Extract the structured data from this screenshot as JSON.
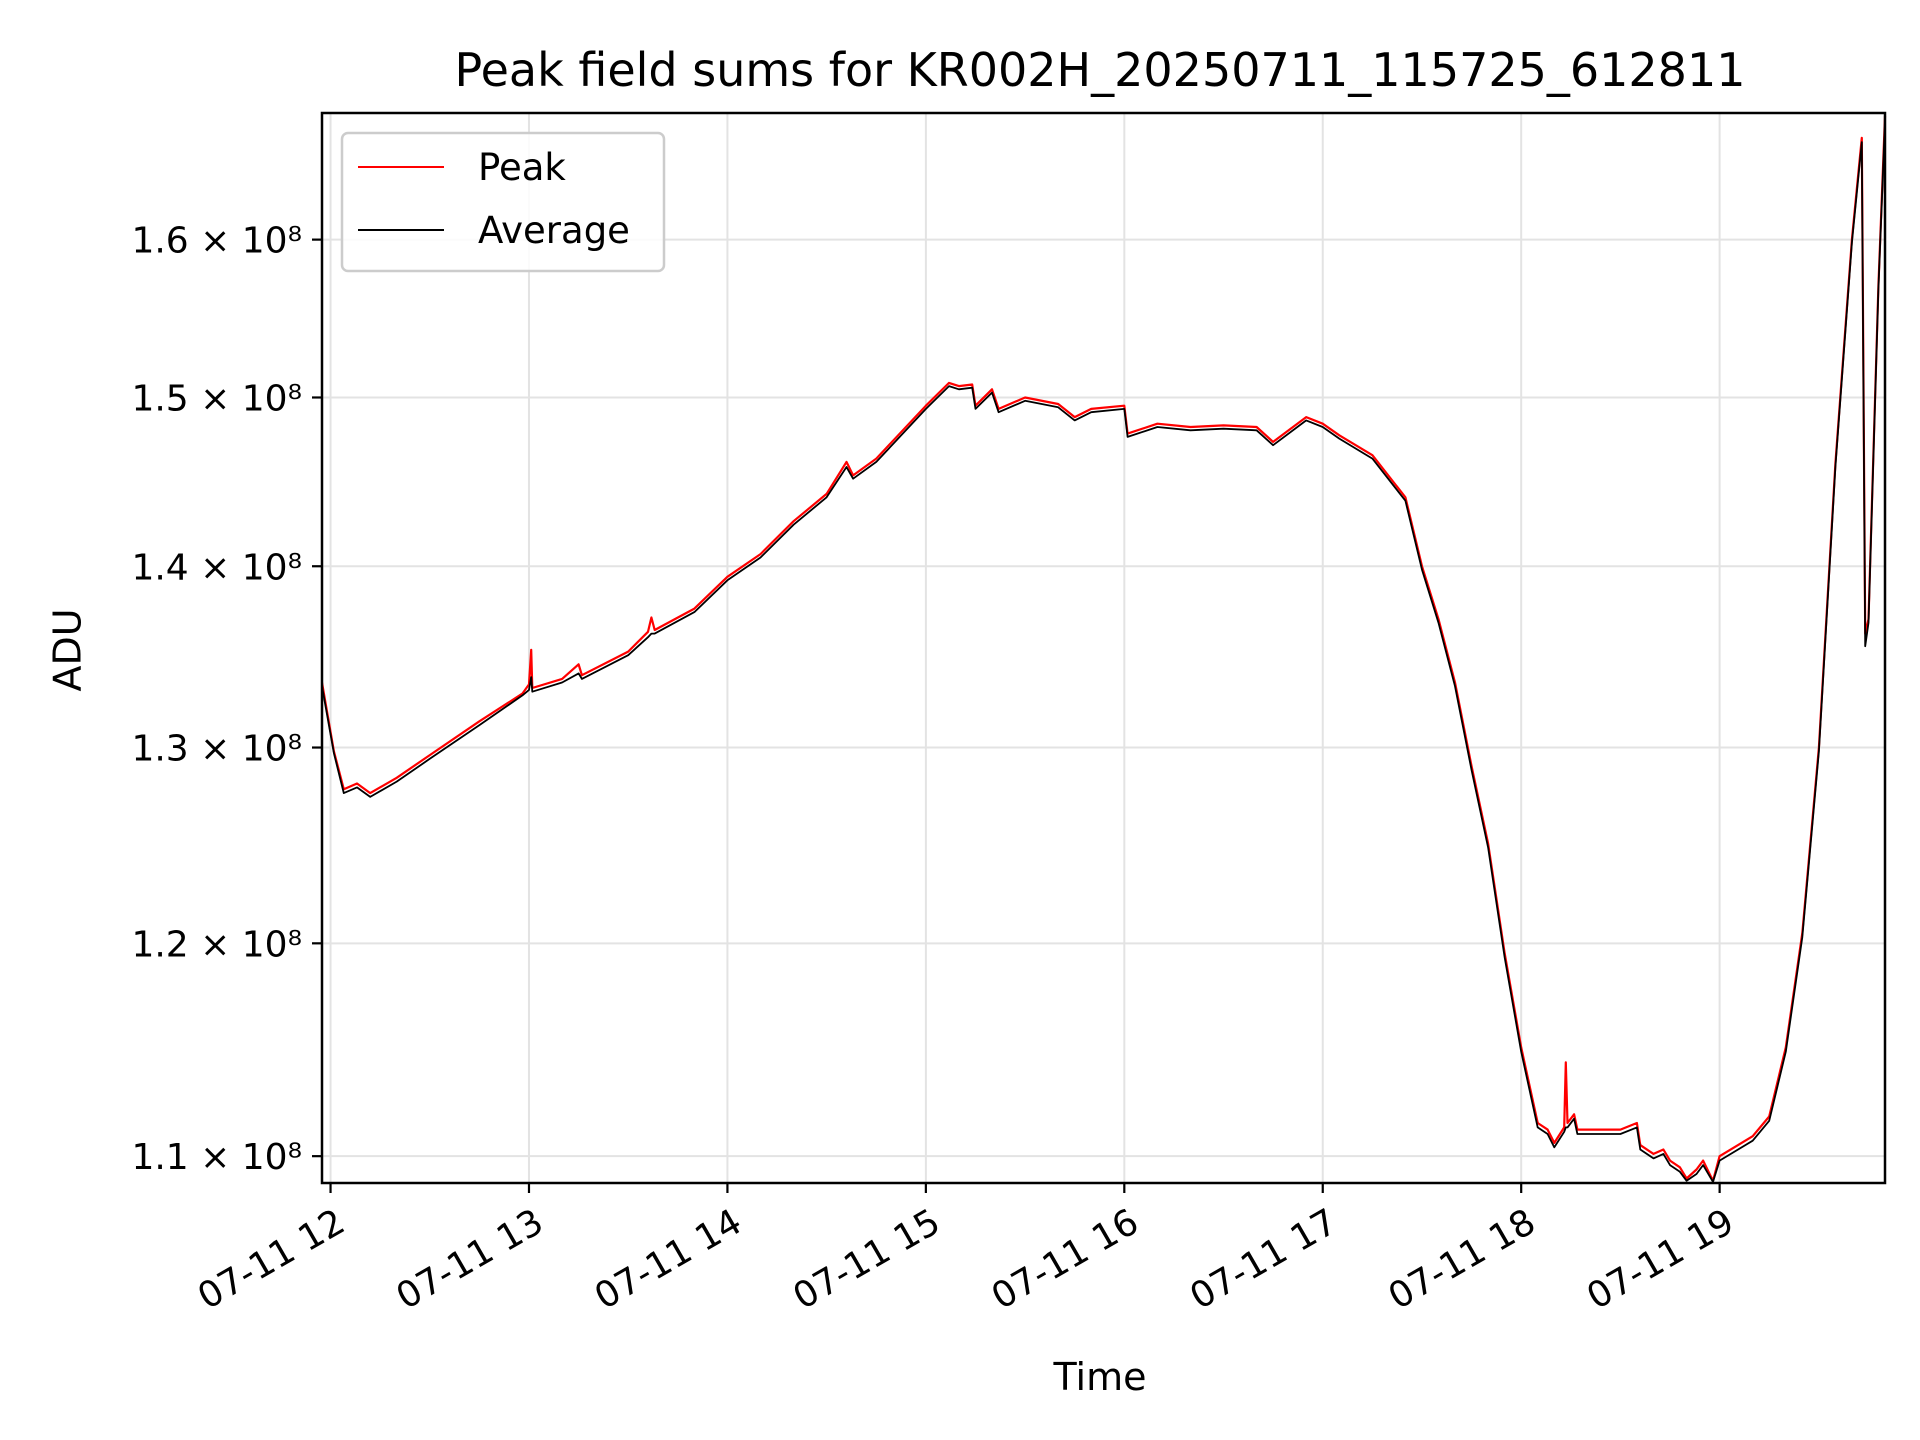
{
  "chart_data": {
    "type": "line",
    "title": "Peak field sums for KR002H_20250711_115725_612811",
    "xlabel": "Time",
    "ylabel": "ADU",
    "y_scale": "log",
    "xlim": [
      "2025-07-11T11:57:25",
      "2025-07-11T19:50:00"
    ],
    "ylim": [
      108800000,
      168500000
    ],
    "grid": true,
    "legend_position": "top-left",
    "x_ticks": [
      {
        "value": "2025-07-11T12:00",
        "label": "07-11 12"
      },
      {
        "value": "2025-07-11T13:00",
        "label": "07-11 13"
      },
      {
        "value": "2025-07-11T14:00",
        "label": "07-11 14"
      },
      {
        "value": "2025-07-11T15:00",
        "label": "07-11 15"
      },
      {
        "value": "2025-07-11T16:00",
        "label": "07-11 16"
      },
      {
        "value": "2025-07-11T17:00",
        "label": "07-11 17"
      },
      {
        "value": "2025-07-11T18:00",
        "label": "07-11 18"
      },
      {
        "value": "2025-07-11T19:00",
        "label": "07-11 19"
      }
    ],
    "y_ticks": [
      {
        "value": 110000000,
        "label": "1.1 × 10⁸"
      },
      {
        "value": 120000000,
        "label": "1.2 × 10⁸"
      },
      {
        "value": 130000000,
        "label": "1.3 × 10⁸"
      },
      {
        "value": 140000000,
        "label": "1.4 × 10⁸"
      },
      {
        "value": 150000000,
        "label": "1.5 × 10⁸"
      },
      {
        "value": 160000000,
        "label": "1.6 × 10⁸"
      }
    ],
    "series": [
      {
        "name": "Peak",
        "color": "#ff0000",
        "points": [
          [
            "2025-07-11T11:57:25",
            133500000
          ],
          [
            "2025-07-11T12:01",
            129800000
          ],
          [
            "2025-07-11T12:04",
            127800000
          ],
          [
            "2025-07-11T12:08",
            128100000
          ],
          [
            "2025-07-11T12:12",
            127600000
          ],
          [
            "2025-07-11T12:20",
            128400000
          ],
          [
            "2025-07-11T12:30",
            129600000
          ],
          [
            "2025-07-11T12:45",
            131400000
          ],
          [
            "2025-07-11T12:58",
            132900000
          ],
          [
            "2025-07-11T13:00",
            133400000
          ],
          [
            "2025-07-11T13:00:40",
            135300000
          ],
          [
            "2025-07-11T13:01",
            133200000
          ],
          [
            "2025-07-11T13:10",
            133700000
          ],
          [
            "2025-07-11T13:15",
            134500000
          ],
          [
            "2025-07-11T13:16",
            133900000
          ],
          [
            "2025-07-11T13:30",
            135200000
          ],
          [
            "2025-07-11T13:36",
            136300000
          ],
          [
            "2025-07-11T13:37",
            137100000
          ],
          [
            "2025-07-11T13:38",
            136400000
          ],
          [
            "2025-07-11T13:50",
            137600000
          ],
          [
            "2025-07-11T14:00",
            139400000
          ],
          [
            "2025-07-11T14:10",
            140700000
          ],
          [
            "2025-07-11T14:20",
            142600000
          ],
          [
            "2025-07-11T14:30",
            144200000
          ],
          [
            "2025-07-11T14:36",
            146100000
          ],
          [
            "2025-07-11T14:38",
            145300000
          ],
          [
            "2025-07-11T14:45",
            146300000
          ],
          [
            "2025-07-11T15:00",
            149500000
          ],
          [
            "2025-07-11T15:07",
            150900000
          ],
          [
            "2025-07-11T15:10",
            150700000
          ],
          [
            "2025-07-11T15:14",
            150800000
          ],
          [
            "2025-07-11T15:15",
            149500000
          ],
          [
            "2025-07-11T15:20",
            150500000
          ],
          [
            "2025-07-11T15:22",
            149300000
          ],
          [
            "2025-07-11T15:30",
            150000000
          ],
          [
            "2025-07-11T15:40",
            149600000
          ],
          [
            "2025-07-11T15:45",
            148800000
          ],
          [
            "2025-07-11T15:50",
            149300000
          ],
          [
            "2025-07-11T16:00",
            149500000
          ],
          [
            "2025-07-11T16:01",
            147800000
          ],
          [
            "2025-07-11T16:10",
            148400000
          ],
          [
            "2025-07-11T16:20",
            148200000
          ],
          [
            "2025-07-11T16:30",
            148300000
          ],
          [
            "2025-07-11T16:40",
            148200000
          ],
          [
            "2025-07-11T16:45",
            147300000
          ],
          [
            "2025-07-11T16:55",
            148800000
          ],
          [
            "2025-07-11T17:00",
            148400000
          ],
          [
            "2025-07-11T17:05",
            147700000
          ],
          [
            "2025-07-11T17:15",
            146500000
          ],
          [
            "2025-07-11T17:25",
            144000000
          ],
          [
            "2025-07-11T17:30",
            140000000
          ],
          [
            "2025-07-11T17:35",
            137000000
          ],
          [
            "2025-07-11T17:40",
            133500000
          ],
          [
            "2025-07-11T17:45",
            129000000
          ],
          [
            "2025-07-11T17:50",
            125000000
          ],
          [
            "2025-07-11T17:55",
            119500000
          ],
          [
            "2025-07-11T18:00",
            115000000
          ],
          [
            "2025-07-11T18:05",
            111500000
          ],
          [
            "2025-07-11T18:08",
            111200000
          ],
          [
            "2025-07-11T18:10",
            110600000
          ],
          [
            "2025-07-11T18:13",
            111300000
          ],
          [
            "2025-07-11T18:13:30",
            114300000
          ],
          [
            "2025-07-11T18:14",
            111500000
          ],
          [
            "2025-07-11T18:16",
            111900000
          ],
          [
            "2025-07-11T18:17",
            111200000
          ],
          [
            "2025-07-11T18:30",
            111200000
          ],
          [
            "2025-07-11T18:35",
            111500000
          ],
          [
            "2025-07-11T18:36",
            110500000
          ],
          [
            "2025-07-11T18:40",
            110100000
          ],
          [
            "2025-07-11T18:43",
            110300000
          ],
          [
            "2025-07-11T18:45",
            109800000
          ],
          [
            "2025-07-11T18:48",
            109500000
          ],
          [
            "2025-07-11T18:50",
            109000000
          ],
          [
            "2025-07-11T18:53",
            109400000
          ],
          [
            "2025-07-11T18:55",
            109800000
          ],
          [
            "2025-07-11T18:58",
            108900000
          ],
          [
            "2025-07-11T19:00",
            110000000
          ],
          [
            "2025-07-11T19:10",
            110900000
          ],
          [
            "2025-07-11T19:15",
            111800000
          ],
          [
            "2025-07-11T19:20",
            115000000
          ],
          [
            "2025-07-11T19:25",
            120500000
          ],
          [
            "2025-07-11T19:30",
            130000000
          ],
          [
            "2025-07-11T19:35",
            146000000
          ],
          [
            "2025-07-11T19:40",
            160000000
          ],
          [
            "2025-07-11T19:43",
            166800000
          ],
          [
            "2025-07-11T19:44",
            136200000
          ],
          [
            "2025-07-11T19:45",
            137000000
          ],
          [
            "2025-07-11T19:48",
            157000000
          ],
          [
            "2025-07-11T19:50",
            168300000
          ]
        ]
      },
      {
        "name": "Average",
        "color": "#000000",
        "points": [
          [
            "2025-07-11T11:57:25",
            133300000
          ],
          [
            "2025-07-11T12:01",
            129700000
          ],
          [
            "2025-07-11T12:04",
            127600000
          ],
          [
            "2025-07-11T12:08",
            127900000
          ],
          [
            "2025-07-11T12:12",
            127400000
          ],
          [
            "2025-07-11T12:20",
            128200000
          ],
          [
            "2025-07-11T12:30",
            129400000
          ],
          [
            "2025-07-11T12:45",
            131200000
          ],
          [
            "2025-07-11T12:58",
            132800000
          ],
          [
            "2025-07-11T13:00",
            133100000
          ],
          [
            "2025-07-11T13:00:40",
            133800000
          ],
          [
            "2025-07-11T13:01",
            133000000
          ],
          [
            "2025-07-11T13:10",
            133500000
          ],
          [
            "2025-07-11T13:15",
            134000000
          ],
          [
            "2025-07-11T13:16",
            133700000
          ],
          [
            "2025-07-11T13:30",
            135000000
          ],
          [
            "2025-07-11T13:36",
            136000000
          ],
          [
            "2025-07-11T13:37",
            136200000
          ],
          [
            "2025-07-11T13:38",
            136200000
          ],
          [
            "2025-07-11T13:50",
            137400000
          ],
          [
            "2025-07-11T14:00",
            139200000
          ],
          [
            "2025-07-11T14:10",
            140500000
          ],
          [
            "2025-07-11T14:20",
            142400000
          ],
          [
            "2025-07-11T14:30",
            144000000
          ],
          [
            "2025-07-11T14:36",
            145800000
          ],
          [
            "2025-07-11T14:38",
            145100000
          ],
          [
            "2025-07-11T14:45",
            146100000
          ],
          [
            "2025-07-11T15:00",
            149300000
          ],
          [
            "2025-07-11T15:07",
            150700000
          ],
          [
            "2025-07-11T15:10",
            150500000
          ],
          [
            "2025-07-11T15:14",
            150600000
          ],
          [
            "2025-07-11T15:15",
            149300000
          ],
          [
            "2025-07-11T15:20",
            150300000
          ],
          [
            "2025-07-11T15:22",
            149100000
          ],
          [
            "2025-07-11T15:30",
            149800000
          ],
          [
            "2025-07-11T15:40",
            149400000
          ],
          [
            "2025-07-11T15:45",
            148600000
          ],
          [
            "2025-07-11T15:50",
            149100000
          ],
          [
            "2025-07-11T16:00",
            149300000
          ],
          [
            "2025-07-11T16:01",
            147600000
          ],
          [
            "2025-07-11T16:10",
            148200000
          ],
          [
            "2025-07-11T16:20",
            148000000
          ],
          [
            "2025-07-11T16:30",
            148100000
          ],
          [
            "2025-07-11T16:40",
            148000000
          ],
          [
            "2025-07-11T16:45",
            147100000
          ],
          [
            "2025-07-11T16:55",
            148600000
          ],
          [
            "2025-07-11T17:00",
            148200000
          ],
          [
            "2025-07-11T17:05",
            147500000
          ],
          [
            "2025-07-11T17:15",
            146300000
          ],
          [
            "2025-07-11T17:25",
            143800000
          ],
          [
            "2025-07-11T17:30",
            139800000
          ],
          [
            "2025-07-11T17:35",
            136800000
          ],
          [
            "2025-07-11T17:40",
            133300000
          ],
          [
            "2025-07-11T17:45",
            128800000
          ],
          [
            "2025-07-11T17:50",
            124800000
          ],
          [
            "2025-07-11T17:55",
            119300000
          ],
          [
            "2025-07-11T18:00",
            114800000
          ],
          [
            "2025-07-11T18:05",
            111300000
          ],
          [
            "2025-07-11T18:08",
            111000000
          ],
          [
            "2025-07-11T18:10",
            110400000
          ],
          [
            "2025-07-11T18:13",
            111100000
          ],
          [
            "2025-07-11T18:13:30",
            111300000
          ],
          [
            "2025-07-11T18:14",
            111300000
          ],
          [
            "2025-07-11T18:16",
            111700000
          ],
          [
            "2025-07-11T18:17",
            111000000
          ],
          [
            "2025-07-11T18:30",
            111000000
          ],
          [
            "2025-07-11T18:35",
            111300000
          ],
          [
            "2025-07-11T18:36",
            110300000
          ],
          [
            "2025-07-11T18:40",
            109900000
          ],
          [
            "2025-07-11T18:43",
            110100000
          ],
          [
            "2025-07-11T18:45",
            109600000
          ],
          [
            "2025-07-11T18:48",
            109300000
          ],
          [
            "2025-07-11T18:50",
            108900000
          ],
          [
            "2025-07-11T18:53",
            109200000
          ],
          [
            "2025-07-11T18:55",
            109600000
          ],
          [
            "2025-07-11T18:58",
            108850000
          ],
          [
            "2025-07-11T19:00",
            109800000
          ],
          [
            "2025-07-11T19:10",
            110700000
          ],
          [
            "2025-07-11T19:15",
            111600000
          ],
          [
            "2025-07-11T19:20",
            114800000
          ],
          [
            "2025-07-11T19:25",
            120300000
          ],
          [
            "2025-07-11T19:30",
            129800000
          ],
          [
            "2025-07-11T19:35",
            145800000
          ],
          [
            "2025-07-11T19:40",
            159800000
          ],
          [
            "2025-07-11T19:43",
            166500000
          ],
          [
            "2025-07-11T19:44",
            135500000
          ],
          [
            "2025-07-11T19:45",
            136800000
          ],
          [
            "2025-07-11T19:48",
            156800000
          ],
          [
            "2025-07-11T19:50",
            168000000
          ]
        ]
      }
    ]
  }
}
